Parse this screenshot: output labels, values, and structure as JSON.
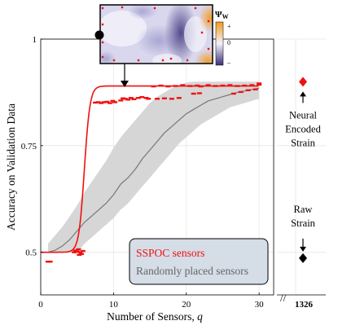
{
  "chart_data": {
    "type": "line",
    "xlabel": "Number of Sensors, ",
    "xlabel_var": "q",
    "ylabel": "Accuracy on Validation Data",
    "xlim": [
      0,
      32
    ],
    "ylim": [
      0.4,
      1.0
    ],
    "xticks": [
      0,
      10,
      20,
      30
    ],
    "yticks": [
      0.5,
      0.75,
      1
    ],
    "ytick_labels": [
      "0.5",
      "0.75",
      "1"
    ],
    "extra_xtick_label": "1326",
    "grid": true,
    "legend": {
      "location": "bottom-right",
      "entries": [
        {
          "label": "SSPOC sensors",
          "color": "#ee1111"
        },
        {
          "label": "Randomly placed sensors",
          "color": "#777777"
        }
      ]
    },
    "series": [
      {
        "name": "SSPOC sensors",
        "kind": "sigmoid-fit",
        "color": "#ee1111",
        "fit": {
          "base": 0.5,
          "top": 0.89,
          "mid": 6.0,
          "steep": 2.6
        },
        "x_range": [
          0,
          30
        ]
      },
      {
        "name": "SSPOC sensors",
        "kind": "points",
        "color": "#ee1111",
        "points": [
          [
            1,
            0.478
          ],
          [
            1.3,
            0.478
          ],
          [
            4.6,
            0.5
          ],
          [
            4.8,
            0.504
          ],
          [
            5,
            0.502
          ],
          [
            5.2,
            0.507
          ],
          [
            5.4,
            0.5
          ],
          [
            5.6,
            0.496
          ],
          [
            5.8,
            0.503
          ],
          [
            5.3,
            0.494
          ],
          [
            7.5,
            0.851
          ],
          [
            7.9,
            0.852
          ],
          [
            8.3,
            0.85
          ],
          [
            8.7,
            0.852
          ],
          [
            9.1,
            0.853
          ],
          [
            9.5,
            0.85
          ],
          [
            9.9,
            0.855
          ],
          [
            10.2,
            0.852
          ],
          [
            11,
            0.856
          ],
          [
            11.3,
            0.861
          ],
          [
            11.6,
            0.86
          ],
          [
            12,
            0.858
          ],
          [
            12.4,
            0.862
          ],
          [
            12.8,
            0.859
          ],
          [
            13.4,
            0.862
          ],
          [
            13.9,
            0.864
          ],
          [
            14.5,
            0.862
          ],
          [
            14.8,
            0.86
          ],
          [
            16,
            0.86
          ],
          [
            17,
            0.861
          ],
          [
            18,
            0.86
          ],
          [
            19,
            0.862
          ],
          [
            15.5,
            0.889
          ],
          [
            16.5,
            0.891
          ],
          [
            17.5,
            0.889
          ],
          [
            18.5,
            0.89
          ],
          [
            19.5,
            0.892
          ],
          [
            20.5,
            0.89
          ],
          [
            21.5,
            0.891
          ],
          [
            22,
            0.889
          ],
          [
            23,
            0.892
          ],
          [
            24,
            0.89
          ],
          [
            25,
            0.891
          ],
          [
            26,
            0.892
          ],
          [
            27,
            0.89
          ],
          [
            28,
            0.891
          ],
          [
            29,
            0.892
          ],
          [
            30,
            0.893
          ],
          [
            21,
            0.872
          ],
          [
            21.8,
            0.873
          ],
          [
            26.5,
            0.872
          ],
          [
            27.5,
            0.876
          ],
          [
            28.5,
            0.88
          ],
          [
            29.5,
            0.882
          ],
          [
            30,
            0.896
          ]
        ]
      },
      {
        "name": "Randomly placed sensors",
        "kind": "mean-band",
        "color": "#777777",
        "band_color": "#d6d6d6",
        "x": [
          1,
          2,
          3,
          4,
          5,
          6,
          7,
          8,
          9,
          10,
          11,
          12,
          13,
          14,
          15,
          16,
          17,
          18,
          19,
          20,
          21,
          22,
          23,
          24,
          25,
          26,
          27,
          28,
          29,
          30
        ],
        "mean": [
          0.5,
          0.505,
          0.515,
          0.53,
          0.55,
          0.57,
          0.585,
          0.6,
          0.615,
          0.635,
          0.66,
          0.675,
          0.695,
          0.72,
          0.74,
          0.76,
          0.78,
          0.795,
          0.81,
          0.825,
          0.835,
          0.845,
          0.855,
          0.86,
          0.865,
          0.87,
          0.875,
          0.878,
          0.882,
          0.885
        ],
        "lower": [
          0.5,
          0.5,
          0.5,
          0.5,
          0.5,
          0.52,
          0.535,
          0.55,
          0.565,
          0.58,
          0.6,
          0.615,
          0.635,
          0.655,
          0.675,
          0.695,
          0.715,
          0.735,
          0.755,
          0.77,
          0.785,
          0.8,
          0.81,
          0.82,
          0.83,
          0.84,
          0.845,
          0.85,
          0.855,
          0.86
        ],
        "upper": [
          0.52,
          0.54,
          0.56,
          0.585,
          0.61,
          0.64,
          0.665,
          0.69,
          0.715,
          0.745,
          0.77,
          0.79,
          0.81,
          0.83,
          0.85,
          0.865,
          0.875,
          0.885,
          0.892,
          0.898,
          0.9,
          0.9,
          0.9,
          0.9,
          0.9,
          0.9,
          0.9,
          0.9,
          0.9,
          0.9
        ]
      }
    ],
    "baselines": [
      {
        "label_lines": [
          "Neural",
          "Encoded",
          "Strain"
        ],
        "value": 0.9,
        "color": "#ee1111"
      },
      {
        "label_lines": [
          "Raw",
          "Strain"
        ],
        "value": 0.49,
        "color": "#000000"
      }
    ],
    "inset": {
      "colorbar_label": "Ψ",
      "colorbar_label_sub": "W",
      "colorbar_ticks": [
        "+",
        "0",
        "–"
      ],
      "colors": {
        "low": "#3a2f78",
        "mid": "#f2f2fa",
        "high": "#f29a1d"
      }
    }
  }
}
